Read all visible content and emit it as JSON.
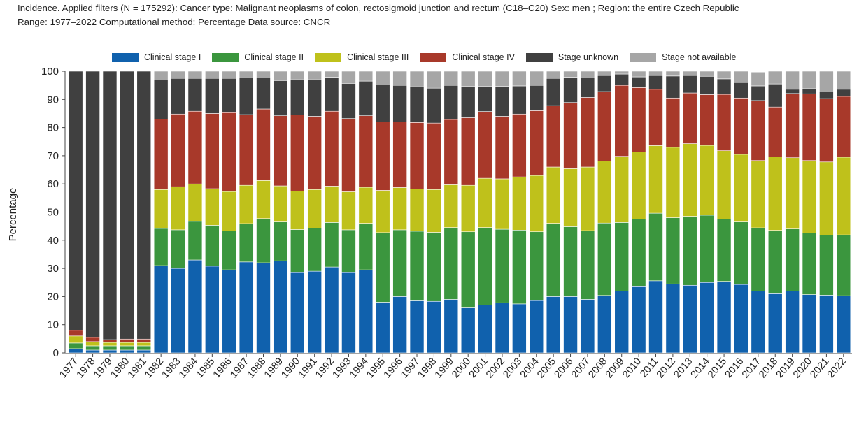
{
  "header": {
    "line1": "Incidence. Applied filters (N = 175292): Cancer type: Malignant neoplasms of colon, rectosigmoid junction and rectum (C18–C20) Sex: men ; Region: the entire Czech Republic",
    "line2": "Range: 1977–2022 Computational method: Percentage Data source: CNCR"
  },
  "chart_data": {
    "type": "bar",
    "stacked": true,
    "ylabel": "Percentage",
    "xlabel": "",
    "ylim": [
      0,
      100
    ],
    "yticks": [
      0,
      10,
      20,
      30,
      40,
      50,
      60,
      70,
      80,
      90,
      100
    ],
    "grid": false,
    "legend_position": "top",
    "categories": [
      "1977",
      "1978",
      "1979",
      "1980",
      "1981",
      "1982",
      "1983",
      "1984",
      "1985",
      "1986",
      "1987",
      "1988",
      "1989",
      "1990",
      "1991",
      "1992",
      "1993",
      "1994",
      "1995",
      "1996",
      "1997",
      "1998",
      "1999",
      "2000",
      "2001",
      "2002",
      "2003",
      "2004",
      "2005",
      "2006",
      "2007",
      "2008",
      "2009",
      "2010",
      "2011",
      "2012",
      "2013",
      "2014",
      "2015",
      "2016",
      "2017",
      "2018",
      "2019",
      "2020",
      "2021",
      "2022"
    ],
    "series": [
      {
        "name": "Clinical stage I",
        "color": "#1061ad",
        "values": [
          1.5,
          1,
          1,
          1,
          1,
          31,
          30,
          33,
          30.8,
          29.5,
          32.3,
          32,
          32.7,
          28.5,
          29,
          30.5,
          28.5,
          29.5,
          18,
          20,
          18.5,
          18.3,
          19,
          16,
          17,
          17.8,
          17.4,
          18.6,
          20,
          20,
          19,
          20.4,
          22,
          23.5,
          25.6,
          24.5,
          24,
          25,
          25.4,
          24.3,
          22,
          21,
          22,
          20.7,
          20.5,
          20.3
        ]
      },
      {
        "name": "Clinical stage II",
        "color": "#3b963e",
        "values": [
          2,
          1.5,
          1.5,
          1.5,
          1.5,
          13.2,
          13.7,
          13.7,
          14.5,
          13.8,
          13.6,
          15.7,
          13.8,
          15.3,
          15.3,
          15.8,
          15.2,
          16.5,
          24.7,
          23.7,
          24.7,
          24.5,
          25.5,
          27,
          27.5,
          26.1,
          26.2,
          24.4,
          26,
          24.8,
          24.4,
          25.7,
          24.3,
          24,
          24,
          23.5,
          24.5,
          23.9,
          22.1,
          22.2,
          22.4,
          22.5,
          22,
          21.9,
          21.3,
          21.6
        ]
      },
      {
        "name": "Clinical stage III",
        "color": "#bfc11b",
        "values": [
          2.5,
          1.5,
          1.2,
          1.2,
          1.2,
          13.8,
          15.3,
          13.3,
          13,
          14,
          13.6,
          13.5,
          12.8,
          13.7,
          13.7,
          12.9,
          13.5,
          12.8,
          15,
          15,
          15,
          15.2,
          15.2,
          16.5,
          17.5,
          17.9,
          18.9,
          20,
          20,
          20.6,
          22.6,
          22,
          23.5,
          23.8,
          24,
          25,
          25.8,
          24.8,
          24.3,
          24,
          23.9,
          26.1,
          25.3,
          25.7,
          26,
          27.6
        ]
      },
      {
        "name": "Clinical stage IV",
        "color": "#a8392a",
        "values": [
          2,
          1.5,
          1,
          1.2,
          1.2,
          25,
          25.8,
          25.8,
          26.7,
          28,
          25.1,
          25.4,
          24.9,
          27,
          26,
          26.6,
          26,
          25.4,
          24.3,
          23.3,
          23.6,
          23.6,
          23.2,
          24,
          23.7,
          22.2,
          22.3,
          23,
          21.8,
          23.5,
          24.7,
          24.7,
          25.2,
          22.9,
          20,
          17.5,
          18,
          18,
          20,
          20,
          21.3,
          17.7,
          22.8,
          23.7,
          22.5,
          21.6
        ]
      },
      {
        "name": "Stage unknown",
        "color": "#404040",
        "values": [
          92,
          94.5,
          95.3,
          95.1,
          95.1,
          13.9,
          12.7,
          11.7,
          12.5,
          12.2,
          13.1,
          11,
          12.5,
          12.5,
          13,
          12.1,
          12.5,
          12.3,
          13.2,
          13,
          12.7,
          12.4,
          12.1,
          11.2,
          9,
          10.6,
          10,
          9,
          9.7,
          9,
          7,
          5.7,
          4,
          3.8,
          4.9,
          7.8,
          6.2,
          6.5,
          5.5,
          5.5,
          5.2,
          8.2,
          1.5,
          1.8,
          2.4,
          2.5
        ]
      },
      {
        "name": "Stage not available",
        "color": "#a6a6a6",
        "values": [
          0,
          0,
          0,
          0,
          0,
          3.1,
          2.5,
          2.5,
          2.5,
          2.5,
          2.3,
          2.4,
          3.3,
          3,
          3,
          2.1,
          4.3,
          3.5,
          4.8,
          5,
          5.5,
          6,
          5,
          5.3,
          5.3,
          5.4,
          5.2,
          5,
          2.5,
          2.1,
          2.3,
          1.5,
          1,
          2,
          1.5,
          1.7,
          1.5,
          1.8,
          2.7,
          4,
          4.9,
          4.5,
          6.4,
          6.2,
          7.3,
          6.4
        ]
      }
    ]
  }
}
